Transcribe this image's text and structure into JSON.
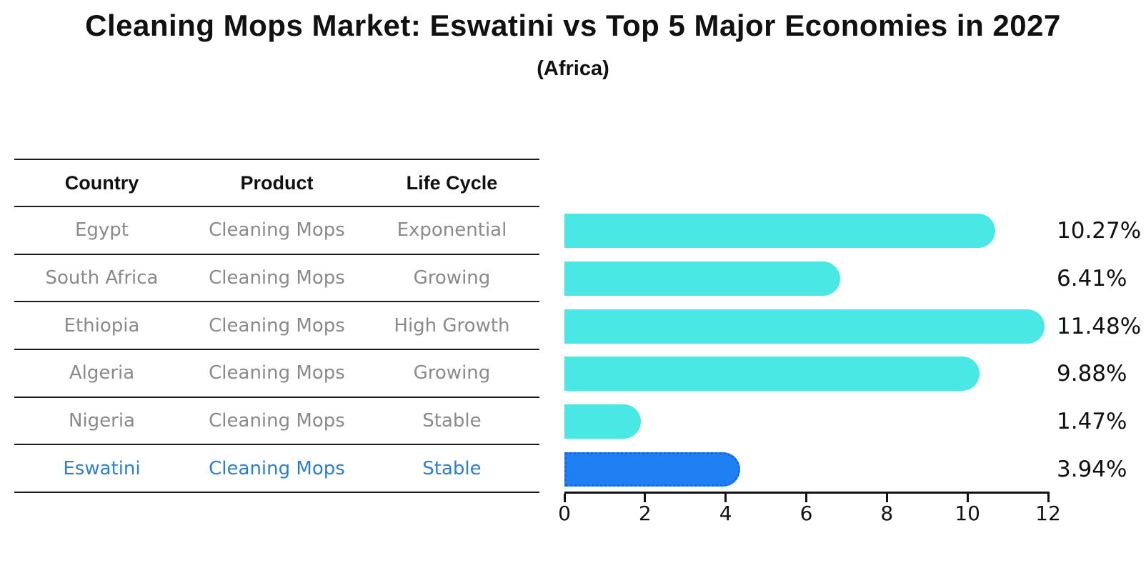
{
  "title": "Cleaning Mops Market: Eswatini vs Top 5 Major Economies in 2027",
  "subtitle": "(Africa)",
  "table": {
    "columns": [
      "Country",
      "Product",
      "Life Cycle"
    ],
    "rows": [
      {
        "country": "Egypt",
        "product": "Cleaning Mops",
        "life_cycle": "Exponential",
        "highlight": false
      },
      {
        "country": "South Africa",
        "product": "Cleaning Mops",
        "life_cycle": "Growing",
        "highlight": false
      },
      {
        "country": "Ethiopia",
        "product": "Cleaning Mops",
        "life_cycle": "High Growth",
        "highlight": false
      },
      {
        "country": "Algeria",
        "product": "Cleaning Mops",
        "life_cycle": "Growing",
        "highlight": false
      },
      {
        "country": "Nigeria",
        "product": "Cleaning Mops",
        "life_cycle": "Stable",
        "highlight": false
      },
      {
        "country": "Eswatini",
        "product": "Cleaning Mops",
        "life_cycle": "Stable",
        "highlight": true
      }
    ]
  },
  "chart_data": {
    "type": "bar",
    "orientation": "horizontal",
    "title": "Cleaning Mops Market: Eswatini vs Top 5 Major Economies in 2027",
    "subtitle": "(Africa)",
    "categories": [
      "Egypt",
      "South Africa",
      "Ethiopia",
      "Algeria",
      "Nigeria",
      "Eswatini"
    ],
    "values": [
      10.27,
      6.41,
      11.48,
      9.88,
      1.47,
      3.94
    ],
    "value_labels": [
      "10.27%",
      "6.41%",
      "11.48%",
      "9.88%",
      "1.47%",
      "3.94%"
    ],
    "highlight_index": 5,
    "xlim": [
      0,
      12
    ],
    "x_ticks": [
      0,
      2,
      4,
      6,
      8,
      10,
      12
    ],
    "grid": false,
    "legend": false,
    "colors": {
      "bar": "#4AE8E4",
      "highlight_bar": "#1E80F2",
      "highlight_border": "#1668DC",
      "highlight_text": "#2B7FD3",
      "table_text": "#8A8A8A",
      "axis": "#111111"
    }
  }
}
